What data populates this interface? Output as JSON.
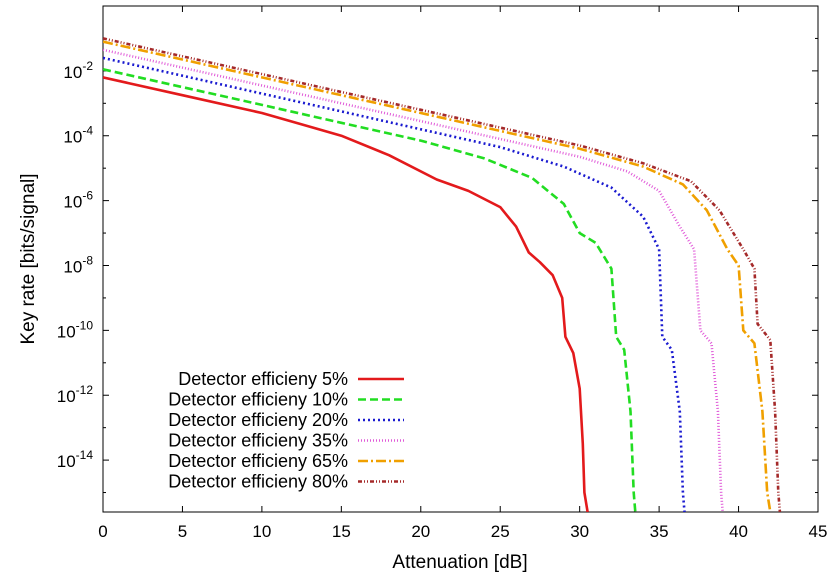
{
  "chart_data": {
    "type": "line",
    "title": "",
    "xlabel": "Attenuation [dB]",
    "ylabel": "Key rate [bits/signal]",
    "xlim": [
      0,
      45
    ],
    "ylim_log10": [
      -15.6,
      0
    ],
    "yscale": "log",
    "grid": false,
    "legend_position": "bottom-left",
    "x_ticks": [
      "0",
      "5",
      "10",
      "15",
      "20",
      "25",
      "30",
      "35",
      "40",
      "45"
    ],
    "y_ticks": [
      {
        "base": "10",
        "exp": "-2",
        "log10": -2
      },
      {
        "base": "10",
        "exp": "-4",
        "log10": -4
      },
      {
        "base": "10",
        "exp": "-6",
        "log10": -6
      },
      {
        "base": "10",
        "exp": "-8",
        "log10": -8
      },
      {
        "base": "10",
        "exp": "-10",
        "log10": -10
      },
      {
        "base": "10",
        "exp": "-12",
        "log10": -12
      },
      {
        "base": "10",
        "exp": "-14",
        "log10": -14
      }
    ],
    "series": [
      {
        "name": "Detector efficieny  5%",
        "color": "#e31a1c",
        "dash": "",
        "points": [
          [
            0,
            -2.2
          ],
          [
            5,
            -2.75
          ],
          [
            10,
            -3.3
          ],
          [
            15,
            -4.0
          ],
          [
            18,
            -4.6
          ],
          [
            21,
            -5.35
          ],
          [
            23,
            -5.7
          ],
          [
            25,
            -6.2
          ],
          [
            26,
            -6.8
          ],
          [
            26.8,
            -7.6
          ],
          [
            27.5,
            -7.9
          ],
          [
            28.3,
            -8.3
          ],
          [
            28.9,
            -9.0
          ],
          [
            29.1,
            -10.2
          ],
          [
            29.6,
            -10.7
          ],
          [
            30.0,
            -11.8
          ],
          [
            30.2,
            -13.5
          ],
          [
            30.3,
            -15.0
          ],
          [
            30.5,
            -15.6
          ]
        ]
      },
      {
        "name": "Detector efficieny 10%",
        "color": "#22dd22",
        "dash": "8,4",
        "points": [
          [
            0,
            -1.95
          ],
          [
            5,
            -2.5
          ],
          [
            10,
            -3.05
          ],
          [
            15,
            -3.6
          ],
          [
            20,
            -4.15
          ],
          [
            24,
            -4.7
          ],
          [
            27,
            -5.3
          ],
          [
            29,
            -6.1
          ],
          [
            30,
            -7.0
          ],
          [
            31,
            -7.3
          ],
          [
            32,
            -8.1
          ],
          [
            32.3,
            -10.2
          ],
          [
            32.8,
            -10.6
          ],
          [
            33.2,
            -12.5
          ],
          [
            33.4,
            -15.0
          ],
          [
            33.5,
            -15.6
          ]
        ]
      },
      {
        "name": "Detector efficieny 20%",
        "color": "#1a1ad0",
        "dash": "2,3",
        "points": [
          [
            0,
            -1.6
          ],
          [
            5,
            -2.15
          ],
          [
            10,
            -2.7
          ],
          [
            15,
            -3.25
          ],
          [
            20,
            -3.8
          ],
          [
            25,
            -4.35
          ],
          [
            29,
            -4.95
          ],
          [
            32,
            -5.6
          ],
          [
            34,
            -6.5
          ],
          [
            35,
            -7.5
          ],
          [
            35.2,
            -10.2
          ],
          [
            35.8,
            -10.6
          ],
          [
            36.3,
            -12.5
          ],
          [
            36.5,
            -15.0
          ],
          [
            36.6,
            -15.6
          ]
        ]
      },
      {
        "name": "Detector efficieny 35%",
        "color": "#e05ad8",
        "dash": "1,2",
        "points": [
          [
            0,
            -1.35
          ],
          [
            5,
            -1.9
          ],
          [
            10,
            -2.45
          ],
          [
            15,
            -3.0
          ],
          [
            20,
            -3.55
          ],
          [
            25,
            -4.1
          ],
          [
            30,
            -4.65
          ],
          [
            33,
            -5.1
          ],
          [
            35,
            -5.7
          ],
          [
            36.3,
            -6.8
          ],
          [
            37.2,
            -7.5
          ],
          [
            37.6,
            -10.0
          ],
          [
            38.3,
            -10.4
          ],
          [
            38.7,
            -12.5
          ],
          [
            38.9,
            -15.0
          ],
          [
            39.0,
            -15.6
          ]
        ]
      },
      {
        "name": "Detector efficieny 65%",
        "color": "#f0a000",
        "dash": "10,3,2,3",
        "points": [
          [
            0,
            -1.1
          ],
          [
            5,
            -1.65
          ],
          [
            10,
            -2.2
          ],
          [
            15,
            -2.75
          ],
          [
            20,
            -3.3
          ],
          [
            25,
            -3.85
          ],
          [
            30,
            -4.4
          ],
          [
            34,
            -4.95
          ],
          [
            36.5,
            -5.5
          ],
          [
            38,
            -6.3
          ],
          [
            39.3,
            -7.5
          ],
          [
            40,
            -8.0
          ],
          [
            40.3,
            -10.0
          ],
          [
            41,
            -10.4
          ],
          [
            41.5,
            -12.5
          ],
          [
            41.8,
            -15.0
          ],
          [
            42.0,
            -15.6
          ]
        ]
      },
      {
        "name": "Detector efficieny 80%",
        "color": "#a52a2a",
        "dash": "4,2,1,2,1,2",
        "points": [
          [
            0,
            -1.0
          ],
          [
            5,
            -1.55
          ],
          [
            10,
            -2.1
          ],
          [
            15,
            -2.65
          ],
          [
            20,
            -3.2
          ],
          [
            25,
            -3.75
          ],
          [
            30,
            -4.3
          ],
          [
            34,
            -4.85
          ],
          [
            37,
            -5.4
          ],
          [
            38.8,
            -6.3
          ],
          [
            40.3,
            -7.5
          ],
          [
            41,
            -8.1
          ],
          [
            41.2,
            -9.8
          ],
          [
            42,
            -10.3
          ],
          [
            42.3,
            -12.5
          ],
          [
            42.5,
            -15.0
          ],
          [
            42.6,
            -15.6
          ]
        ]
      }
    ]
  }
}
